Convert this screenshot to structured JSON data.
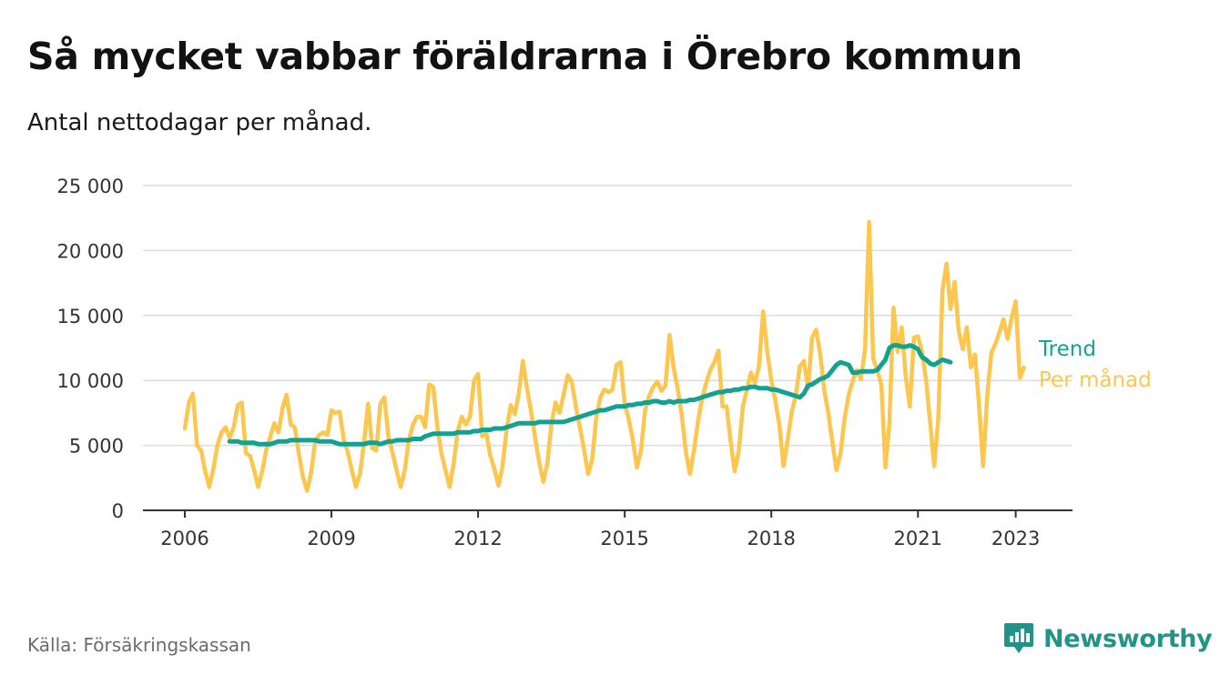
{
  "header": {
    "title": "Så mycket vabbar föräldrarna i Örebro kommun",
    "subtitle": "Antal nettodagar per månad."
  },
  "footer": {
    "source": "Källa: Försäkringskassan",
    "brand": "Newsworthy",
    "brand_icon": "newsworthy-logo-icon"
  },
  "colors": {
    "per_month": "#fcc64f",
    "trend": "#13a191",
    "grid": "#dcdcdc",
    "axis": "#333333",
    "brand": "#229487"
  },
  "chart_data": {
    "type": "line",
    "title": "Så mycket vabbar föräldrarna i Örebro kommun",
    "subtitle": "Antal nettodagar per månad.",
    "xlabel": "",
    "ylabel": "",
    "ylim": [
      0,
      25000
    ],
    "yticks": [
      0,
      5000,
      10000,
      15000,
      20000,
      25000
    ],
    "ytick_labels": [
      "0",
      "5 000",
      "10 000",
      "15 000",
      "20 000",
      "25 000"
    ],
    "xlim": [
      2006.0,
      2023.92
    ],
    "xticks": [
      2006,
      2009,
      2012,
      2015,
      2018,
      2021,
      2023
    ],
    "xtick_labels": [
      "2006",
      "2009",
      "2012",
      "2015",
      "2018",
      "2021",
      "2023"
    ],
    "grid": "horizontal",
    "legend": "direct labels at line ends",
    "series": [
      {
        "name": "Per månad",
        "start": "2006-01",
        "values": [
          6300,
          8300,
          9000,
          5000,
          4600,
          3000,
          1800,
          3200,
          5000,
          6000,
          6400,
          5600,
          6400,
          8100,
          8300,
          4400,
          4200,
          3100,
          1800,
          3000,
          4700,
          5700,
          6700,
          6000,
          7900,
          8900,
          6600,
          6400,
          4300,
          2600,
          1500,
          2900,
          5300,
          5800,
          6000,
          5800,
          7700,
          7500,
          7600,
          5500,
          4500,
          3100,
          1800,
          2800,
          5200,
          8200,
          4800,
          4600,
          8200,
          8700,
          5600,
          4400,
          3100,
          1800,
          3100,
          5400,
          6600,
          7200,
          7200,
          6400,
          9700,
          9500,
          6400,
          4400,
          3100,
          1800,
          3600,
          6100,
          7200,
          6600,
          7200,
          10000,
          10500,
          5700,
          6000,
          4200,
          3200,
          1900,
          3400,
          6200,
          8100,
          7400,
          9000,
          11500,
          9400,
          7600,
          5600,
          3700,
          2200,
          3600,
          6600,
          8300,
          7500,
          8900,
          10400,
          9900,
          8000,
          6400,
          4700,
          2800,
          3900,
          7100,
          8700,
          9300,
          9100,
          9300,
          11200,
          11400,
          8200,
          7000,
          5400,
          3300,
          4600,
          7700,
          8800,
          9500,
          9900,
          9200,
          9600,
          13500,
          11000,
          9400,
          7300,
          4500,
          2800,
          4600,
          6900,
          8600,
          9800,
          10800,
          11400,
          12300,
          8000,
          8000,
          5300,
          3000,
          4600,
          8000,
          9300,
          10600,
          9800,
          11200,
          15300,
          12200,
          10000,
          8400,
          6500,
          3400,
          5400,
          7600,
          8800,
          11100,
          11500,
          9400,
          13300,
          13900,
          12000,
          9200,
          7500,
          5200,
          3100,
          4400,
          7100,
          8900,
          10000,
          10800,
          10100,
          12400,
          22200,
          11700,
          10800,
          9700,
          3300,
          6700,
          15600,
          12200,
          14100,
          10300,
          8000,
          13300,
          13400,
          12200,
          10000,
          6700,
          3400,
          7100,
          16900,
          19000,
          15500,
          17600,
          13800,
          12400,
          14100,
          11000,
          12000,
          8100,
          3400,
          8800,
          12100,
          12800,
          13700,
          14700,
          13200,
          14800,
          16100,
          10200,
          11000
        ],
        "color": "#fcc64f",
        "label": "Per månad"
      },
      {
        "name": "Trend",
        "start": "2006-12",
        "values": [
          5300,
          5300,
          5300,
          5200,
          5200,
          5200,
          5200,
          5100,
          5100,
          5100,
          5100,
          5200,
          5300,
          5300,
          5300,
          5400,
          5400,
          5400,
          5400,
          5400,
          5400,
          5400,
          5300,
          5300,
          5300,
          5300,
          5200,
          5100,
          5100,
          5100,
          5100,
          5100,
          5100,
          5100,
          5200,
          5200,
          5200,
          5100,
          5200,
          5300,
          5300,
          5400,
          5400,
          5400,
          5400,
          5500,
          5500,
          5500,
          5700,
          5800,
          5900,
          5900,
          5900,
          5900,
          5900,
          5900,
          6000,
          6000,
          6000,
          6000,
          6100,
          6100,
          6200,
          6200,
          6200,
          6300,
          6300,
          6300,
          6400,
          6500,
          6600,
          6700,
          6700,
          6700,
          6700,
          6700,
          6800,
          6800,
          6800,
          6800,
          6800,
          6800,
          6800,
          6900,
          7000,
          7100,
          7200,
          7300,
          7400,
          7500,
          7600,
          7700,
          7700,
          7800,
          7900,
          8000,
          8000,
          8000,
          8100,
          8100,
          8200,
          8200,
          8300,
          8300,
          8400,
          8400,
          8300,
          8300,
          8400,
          8300,
          8400,
          8400,
          8400,
          8500,
          8500,
          8600,
          8700,
          8800,
          8900,
          9000,
          9100,
          9100,
          9200,
          9200,
          9300,
          9300,
          9400,
          9400,
          9500,
          9500,
          9400,
          9400,
          9400,
          9300,
          9300,
          9200,
          9100,
          9000,
          8900,
          8800,
          8700,
          9000,
          9600,
          9700,
          9900,
          10100,
          10200,
          10400,
          10800,
          11200,
          11400,
          11300,
          11200,
          10600,
          10600,
          10700,
          10700,
          10700,
          10700,
          10800,
          11200,
          11600,
          12500,
          12700,
          12700,
          12600,
          12600,
          12700,
          12600,
          12400,
          11800,
          11600,
          11300,
          11200,
          11400,
          11600,
          11500,
          11400
        ],
        "color": "#13a191",
        "label": "Trend"
      }
    ]
  }
}
